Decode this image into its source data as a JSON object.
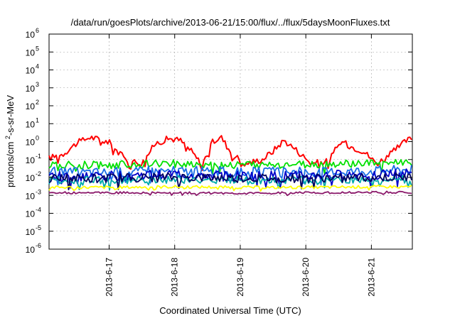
{
  "chart_data": {
    "type": "line",
    "title": "/data/run/goesPlots/archive/2013-06-21/15:00/flux/../flux/5daysMoonFluxes.txt",
    "xlabel": "Coordinated Universal Time (UTC)",
    "ylabel": "protons/cm²-s-sr-MeV",
    "y_scale": "log",
    "ylim": [
      1e-06,
      1000000.0
    ],
    "xlim": [
      "2013-06-16T02:00",
      "2013-06-21T15:00"
    ],
    "grid": true,
    "legend": "none",
    "x_ticks": [
      {
        "label": "2013-6-17",
        "x": "2013-06-17T00:00"
      },
      {
        "label": "2013-6-18",
        "x": "2013-06-18T00:00"
      },
      {
        "label": "2013-6-19",
        "x": "2013-06-19T00:00"
      },
      {
        "label": "2013-6-20",
        "x": "2013-06-20T00:00"
      },
      {
        "label": "2013-6-21",
        "x": "2013-06-21T00:00"
      }
    ],
    "y_ticks": [
      {
        "base": "10",
        "exp": "-6",
        "value": 1e-06
      },
      {
        "base": "10",
        "exp": "-5",
        "value": 1e-05
      },
      {
        "base": "10",
        "exp": "-4",
        "value": 0.0001
      },
      {
        "base": "10",
        "exp": "-3",
        "value": 0.001
      },
      {
        "base": "10",
        "exp": "-2",
        "value": 0.01
      },
      {
        "base": "10",
        "exp": "-1",
        "value": 0.1
      },
      {
        "base": "10",
        "exp": "0",
        "value": 1
      },
      {
        "base": "10",
        "exp": "1",
        "value": 10
      },
      {
        "base": "10",
        "exp": "2",
        "value": 100
      },
      {
        "base": "10",
        "exp": "3",
        "value": 1000
      },
      {
        "base": "10",
        "exp": "4",
        "value": 10000
      },
      {
        "base": "10",
        "exp": "5",
        "value": 100000
      },
      {
        "base": "10",
        "exp": "6",
        "value": 1000000
      }
    ],
    "series": [
      {
        "color": "#ff0000",
        "x": [
          "2013-06-16T02:00",
          "2013-06-16T07:00",
          "2013-06-16T12:00",
          "2013-06-16T17:00",
          "2013-06-17T00:00",
          "2013-06-17T06:00",
          "2013-06-17T12:00",
          "2013-06-17T17:00",
          "2013-06-17T22:00",
          "2013-06-18T02:00",
          "2013-06-18T06:00",
          "2013-06-18T10:00",
          "2013-06-18T14:00",
          "2013-06-18T17:00",
          "2013-06-18T21:00",
          "2013-06-19T02:00",
          "2013-06-19T08:00",
          "2013-06-19T12:00",
          "2013-06-19T16:00",
          "2013-06-19T20:00",
          "2013-06-20T02:00",
          "2013-06-20T08:00",
          "2013-06-20T13:00",
          "2013-06-20T17:00",
          "2013-06-20T21:00",
          "2013-06-21T02:00",
          "2013-06-21T06:00",
          "2013-06-21T10:00",
          "2013-06-21T13:00",
          "2013-06-21T15:00"
        ],
        "values": [
          0.12,
          0.2,
          0.8,
          1.8,
          0.9,
          0.1,
          0.06,
          0.8,
          1.5,
          1.2,
          0.3,
          0.05,
          1.0,
          1.8,
          0.2,
          0.06,
          0.1,
          0.3,
          1.2,
          0.4,
          0.06,
          0.08,
          1.0,
          0.5,
          0.3,
          0.06,
          0.15,
          0.5,
          1.2,
          1.5
        ]
      },
      {
        "color": "#00e000",
        "x": [
          "2013-06-16T02:00",
          "2013-06-17T00:00",
          "2013-06-18T00:00",
          "2013-06-19T00:00",
          "2013-06-20T00:00",
          "2013-06-21T00:00",
          "2013-06-21T15:00"
        ],
        "values": [
          0.05,
          0.05,
          0.06,
          0.05,
          0.05,
          0.06,
          0.07
        ]
      },
      {
        "color": "#1a6fe6",
        "x": [
          "2013-06-16T02:00",
          "2013-06-17T00:00",
          "2013-06-18T00:00",
          "2013-06-19T00:00",
          "2013-06-20T00:00",
          "2013-06-21T00:00",
          "2013-06-21T15:00"
        ],
        "values": [
          0.02,
          0.02,
          0.025,
          0.02,
          0.02,
          0.025,
          0.03
        ]
      },
      {
        "color": "#0000c8",
        "x": [
          "2013-06-16T02:00",
          "2013-06-17T00:00",
          "2013-06-18T00:00",
          "2013-06-19T00:00",
          "2013-06-20T00:00",
          "2013-06-21T00:00",
          "2013-06-21T15:00"
        ],
        "values": [
          0.012,
          0.012,
          0.015,
          0.012,
          0.012,
          0.015,
          0.016
        ]
      },
      {
        "color": "#00aaaa",
        "x": [
          "2013-06-16T02:00",
          "2013-06-17T00:00",
          "2013-06-18T00:00",
          "2013-06-19T00:00",
          "2013-06-20T00:00",
          "2013-06-21T00:00",
          "2013-06-21T15:00"
        ],
        "values": [
          0.007,
          0.007,
          0.008,
          0.007,
          0.007,
          0.008,
          0.008
        ]
      },
      {
        "color": "#000060",
        "x": [
          "2013-06-16T02:00",
          "2013-06-17T00:00",
          "2013-06-18T00:00",
          "2013-06-19T00:00",
          "2013-06-20T00:00",
          "2013-06-21T00:00",
          "2013-06-21T15:00"
        ],
        "values": [
          0.009,
          0.009,
          0.01,
          0.009,
          0.009,
          0.01,
          0.01
        ]
      },
      {
        "color": "#ffff00",
        "x": [
          "2013-06-16T02:00",
          "2013-06-17T00:00",
          "2013-06-18T00:00",
          "2013-06-19T00:00",
          "2013-06-20T00:00",
          "2013-06-21T00:00",
          "2013-06-21T15:00"
        ],
        "values": [
          0.0028,
          0.0028,
          0.003,
          0.0028,
          0.0028,
          0.003,
          0.0031
        ]
      },
      {
        "color": "#8b1a6b",
        "x": [
          "2013-06-16T02:00",
          "2013-06-17T00:00",
          "2013-06-18T00:00",
          "2013-06-19T00:00",
          "2013-06-20T00:00",
          "2013-06-21T00:00",
          "2013-06-21T15:00"
        ],
        "values": [
          0.0014,
          0.0014,
          0.0014,
          0.0013,
          0.0014,
          0.0015,
          0.0015
        ]
      }
    ]
  }
}
